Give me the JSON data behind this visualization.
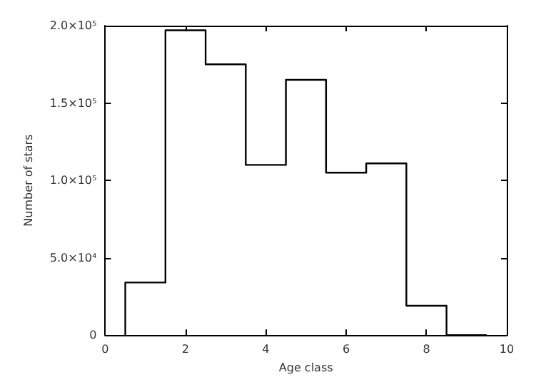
{
  "chart_data": {
    "type": "histogram",
    "xlabel": "Age class",
    "ylabel": "Number of stars",
    "bins": [
      0.5,
      1.5,
      2.5,
      3.5,
      4.5,
      5.5,
      6.5,
      7.5,
      8.5,
      9.5
    ],
    "values": [
      34000,
      197000,
      175000,
      110000,
      165000,
      105000,
      111000,
      19000,
      0
    ],
    "color": "#000000",
    "xlim": [
      0,
      10
    ],
    "xticks": [
      0,
      2,
      4,
      6,
      8,
      10
    ],
    "ylim": [
      0,
      200000
    ],
    "yticks": [
      0,
      {
        "value": 50000,
        "label": "5.0×10⁴"
      },
      {
        "value": 100000,
        "label": "1.0×10⁵"
      },
      {
        "value": 150000,
        "label": "1.5×10⁵"
      },
      {
        "value": 200000,
        "label": "2.0×10⁵"
      }
    ],
    "grid": false
  }
}
